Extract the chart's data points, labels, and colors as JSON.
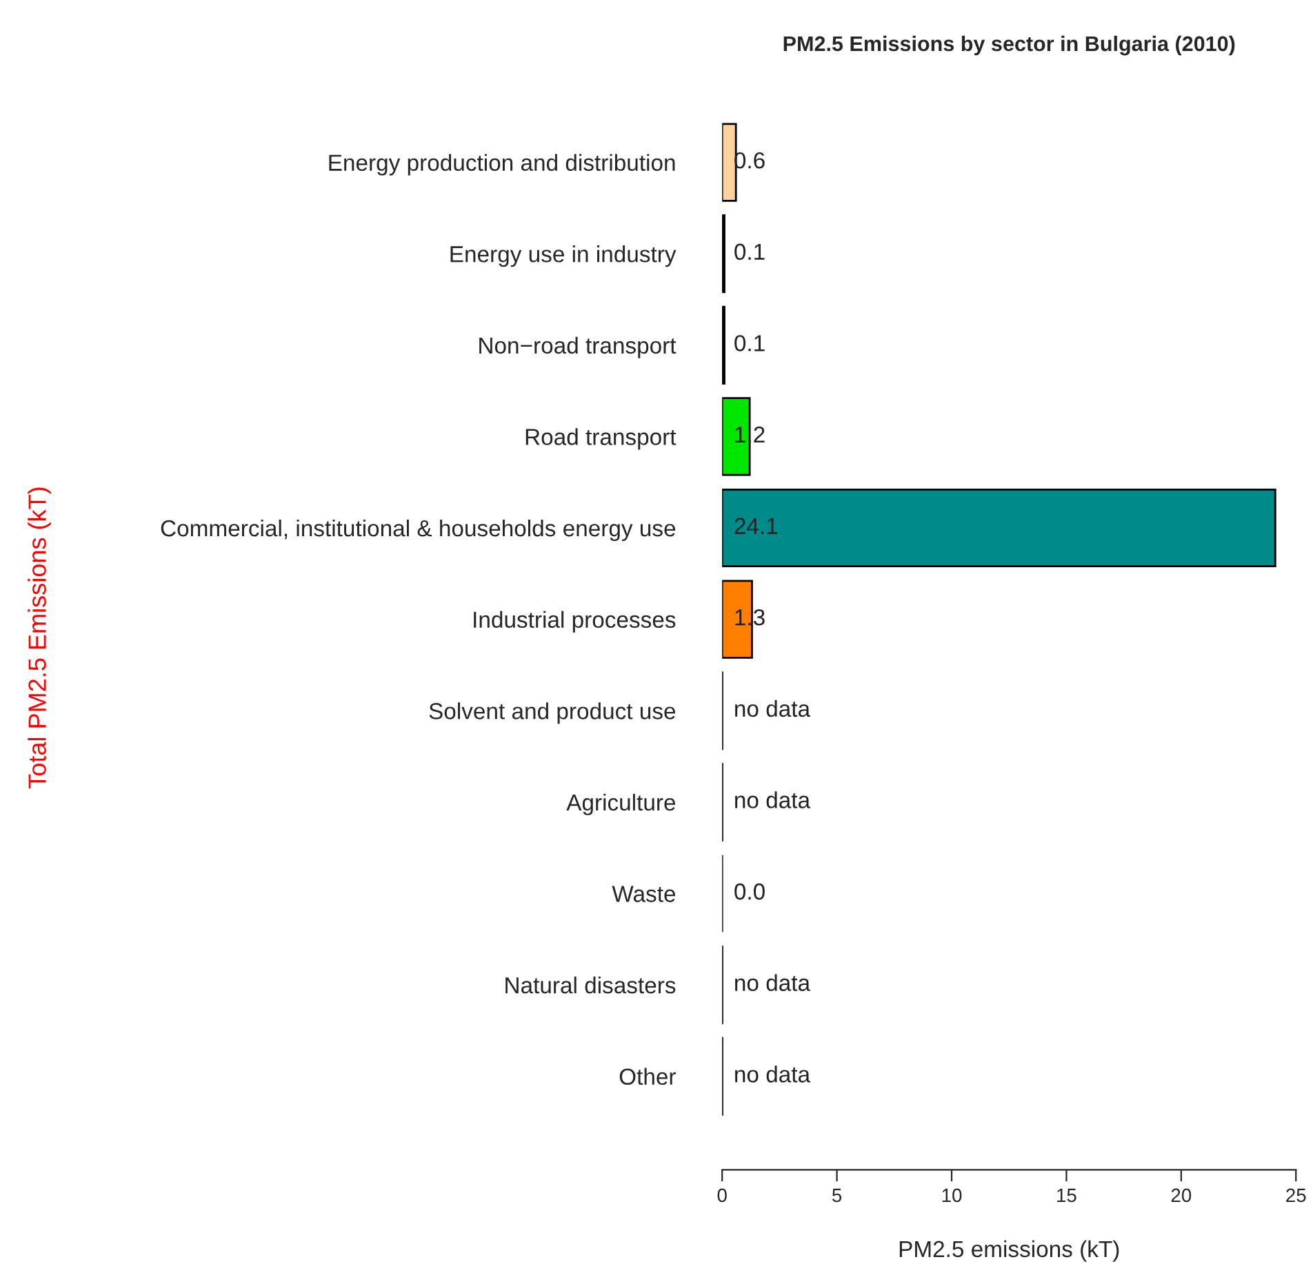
{
  "chart_data": {
    "type": "bar",
    "orientation": "horizontal",
    "title": "PM2.5 Emissions by sector in Bulgaria (2010)",
    "xlabel": "PM2.5 emissions (kT)",
    "categories": [
      "Energy production and distribution",
      "Energy use in industry",
      "Non−road transport",
      "Road transport",
      "Commercial, institutional & households energy use",
      "Industrial processes",
      "Solvent and product use",
      "Agriculture",
      "Waste",
      "Natural disasters",
      "Other"
    ],
    "values": [
      0.6,
      0.1,
      0.1,
      1.2,
      24.1,
      1.3,
      null,
      null,
      0.0,
      null,
      null
    ],
    "value_labels": [
      "0.6",
      "0.1",
      "0.1",
      "1.2",
      "24.1",
      "1.3",
      "no data",
      "no data",
      "0.0",
      "no data",
      "no data"
    ],
    "colors": [
      "#fdd49e",
      "#000000",
      "#000000",
      "#00e600",
      "#008b8b",
      "#ff7f00",
      "#000000",
      "#000000",
      "#000000",
      "#000000",
      "#000000"
    ],
    "xlim": [
      0,
      25
    ],
    "xticks": [
      0,
      5,
      10,
      15,
      20,
      25
    ],
    "grid": false,
    "legend": false,
    "annotations": [
      "Total PM2.5 Emissions (kT)"
    ]
  }
}
